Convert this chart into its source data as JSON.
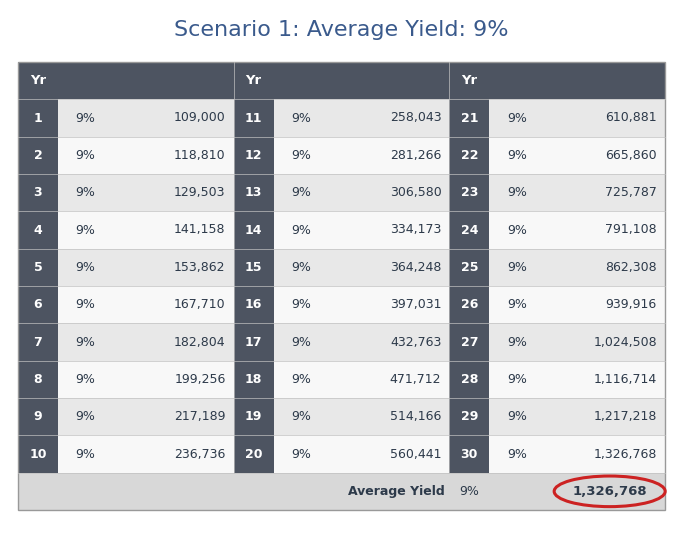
{
  "title": "Scenario 1: Average Yield: 9%",
  "title_color": "#3a5a8c",
  "title_fontsize": 16,
  "header_bg": "#4d5461",
  "header_text_color": "#ffffff",
  "yr_col_bg": "#4d5461",
  "row_bg_odd": "#e8e8e8",
  "row_bg_even": "#f8f8f8",
  "footer_bg": "#d8d8d8",
  "years": [
    1,
    2,
    3,
    4,
    5,
    6,
    7,
    8,
    9,
    10,
    11,
    12,
    13,
    14,
    15,
    16,
    17,
    18,
    19,
    20,
    21,
    22,
    23,
    24,
    25,
    26,
    27,
    28,
    29,
    30
  ],
  "yields": [
    "9%",
    "9%",
    "9%",
    "9%",
    "9%",
    "9%",
    "9%",
    "9%",
    "9%",
    "9%",
    "9%",
    "9%",
    "9%",
    "9%",
    "9%",
    "9%",
    "9%",
    "9%",
    "9%",
    "9%",
    "9%",
    "9%",
    "9%",
    "9%",
    "9%",
    "9%",
    "9%",
    "9%",
    "9%",
    "9%"
  ],
  "values": [
    109000,
    118810,
    129503,
    141158,
    153862,
    167710,
    182804,
    199256,
    217189,
    236736,
    258043,
    281266,
    306580,
    334173,
    364248,
    397031,
    432763,
    471712,
    514166,
    560441,
    610881,
    665860,
    725787,
    791108,
    862308,
    939916,
    1024508,
    1116714,
    1217218,
    1326768
  ],
  "avg_yield": "9%",
  "final_value": "1,326,768",
  "circle_color": "#cc2222"
}
